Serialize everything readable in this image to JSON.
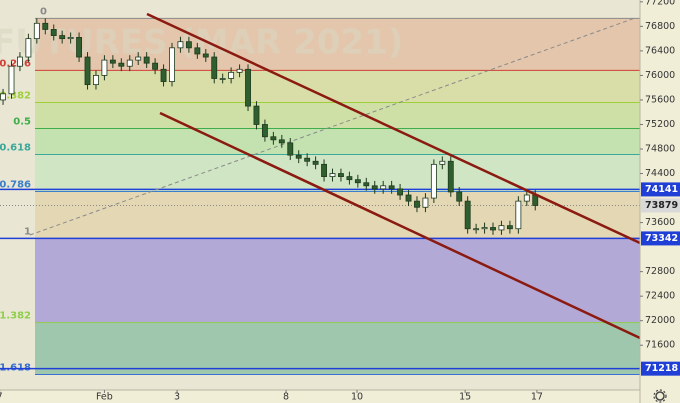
{
  "chart_data": {
    "type": "candlestick",
    "watermark": "FUTURES (MAR 2021)",
    "open": [
      75600,
      75700,
      76150,
      76300,
      76600,
      76850,
      76750,
      76650,
      76600,
      76620,
      76300,
      75850,
      76000,
      76250,
      76200,
      76150,
      76250,
      76300,
      76200,
      76100,
      75900,
      76450,
      76550,
      76450,
      76350,
      76300,
      75950,
      75950,
      76050,
      76100,
      75500,
      75200,
      75000,
      74950,
      74900,
      74700,
      74650,
      74600,
      74550,
      74350,
      74400,
      74350,
      74300,
      74250,
      74200,
      74150,
      74200,
      74150,
      74050,
      73950,
      73850,
      74000,
      74550,
      74600,
      74100,
      73950,
      73500,
      73500,
      73520,
      73480,
      73550,
      73500,
      73950,
      74050
    ],
    "high": [
      75780,
      76230,
      76380,
      76680,
      76930,
      76930,
      76830,
      76730,
      76700,
      76700,
      76380,
      76080,
      76330,
      76330,
      76280,
      76330,
      76380,
      76380,
      76280,
      76180,
      76530,
      76630,
      76630,
      76530,
      76430,
      76380,
      76030,
      76130,
      76180,
      76180,
      75580,
      75280,
      75080,
      75030,
      74980,
      74780,
      74730,
      74680,
      74630,
      74480,
      74480,
      74430,
      74380,
      74330,
      74280,
      74280,
      74280,
      74230,
      74130,
      74030,
      74080,
      74630,
      74680,
      74680,
      74180,
      74030,
      73580,
      73600,
      73600,
      73630,
      73630,
      74030,
      74130,
      74130
    ],
    "low": [
      75520,
      75620,
      76070,
      76220,
      76520,
      76670,
      76570,
      76520,
      76520,
      76220,
      75770,
      75770,
      75920,
      76120,
      76070,
      76070,
      76170,
      76120,
      76020,
      75820,
      75820,
      76370,
      76370,
      76270,
      76220,
      75870,
      75870,
      75870,
      75970,
      75420,
      75120,
      74920,
      74870,
      74820,
      74620,
      74570,
      74520,
      74470,
      74270,
      74270,
      74270,
      74220,
      74170,
      74120,
      74070,
      74070,
      74070,
      73970,
      73870,
      73770,
      73770,
      73920,
      74470,
      74020,
      73870,
      73420,
      73420,
      73420,
      73400,
      73400,
      73420,
      73420,
      73870,
      73799
    ],
    "close": [
      75700,
      76150,
      76300,
      76600,
      76850,
      76750,
      76650,
      76600,
      76620,
      76300,
      75850,
      76000,
      76250,
      76200,
      76150,
      76250,
      76300,
      76200,
      76100,
      75900,
      76450,
      76550,
      76450,
      76350,
      76300,
      75950,
      75950,
      76050,
      76100,
      75500,
      75200,
      75000,
      74950,
      74900,
      74700,
      74650,
      74600,
      74550,
      74350,
      74400,
      74350,
      74300,
      74250,
      74200,
      74150,
      74200,
      74150,
      74050,
      73950,
      73850,
      74000,
      74550,
      74600,
      74100,
      73950,
      73500,
      73500,
      73520,
      73480,
      73550,
      73500,
      73950,
      74050,
      73879
    ],
    "up_color": "#ffffff",
    "down_color": "#2f5f2f",
    "wick_color": "#1e3a1e",
    "xlim": [
      -0.36,
      75.4
    ],
    "xticks": [
      {
        "value": -0.4,
        "label": "7"
      },
      {
        "value": 12,
        "label": "Feb"
      },
      {
        "value": 20.6,
        "label": "3"
      },
      {
        "value": 33.5,
        "label": "8"
      },
      {
        "value": 41.9,
        "label": "10"
      },
      {
        "value": 54.7,
        "label": "15"
      },
      {
        "value": 63.2,
        "label": "17"
      }
    ],
    "ylim": [
      70870,
      77230
    ],
    "yticks": [
      77200,
      76800,
      76400,
      76000,
      75600,
      75200,
      74800,
      74400,
      73600,
      72800,
      72400,
      72000,
      71600
    ],
    "fib_levels": [
      {
        "label": "0",
        "value": 76930,
        "color": "#8a8a8a",
        "fill": "#e3c6ab"
      },
      {
        "label": "0.236",
        "value": 76083,
        "color": "#d0413a",
        "fill": "#d9dea9"
      },
      {
        "label": "0.382",
        "value": 75559,
        "color": "#9fcf3a",
        "fill": "#cfe0a6"
      },
      {
        "label": "0.5",
        "value": 75135,
        "color": "#3fae4a",
        "fill": "#c3e2b0"
      },
      {
        "label": "0.618",
        "value": 74711,
        "color": "#3aa89a",
        "fill": "#cfe5c3"
      },
      {
        "label": "0.786",
        "value": 74108,
        "color": "#3a7fc9",
        "fill": "#e3d7b4"
      },
      {
        "label": "1",
        "value": 73340,
        "color": "#8a8a8a",
        "fill": "#b3a9d6"
      },
      {
        "label": "1.382",
        "value": 71969,
        "color": "#8fcf4a",
        "fill": "#9fc7ad"
      },
      {
        "label": "1.618",
        "value": 71122,
        "color": "#3a6fd0"
      }
    ],
    "price_lines": [
      {
        "value": 74141,
        "color": "#1f3fd6",
        "text_color": "#ffffff"
      },
      {
        "value": 73879,
        "color": "#d8d8d8",
        "text_color": "#222222",
        "dotted": true
      },
      {
        "value": 73342,
        "color": "#1f3fd6",
        "text_color": "#ffffff"
      },
      {
        "value": 71218,
        "color": "#1f3fd6",
        "text_color": "#ffffff"
      }
    ]
  }
}
